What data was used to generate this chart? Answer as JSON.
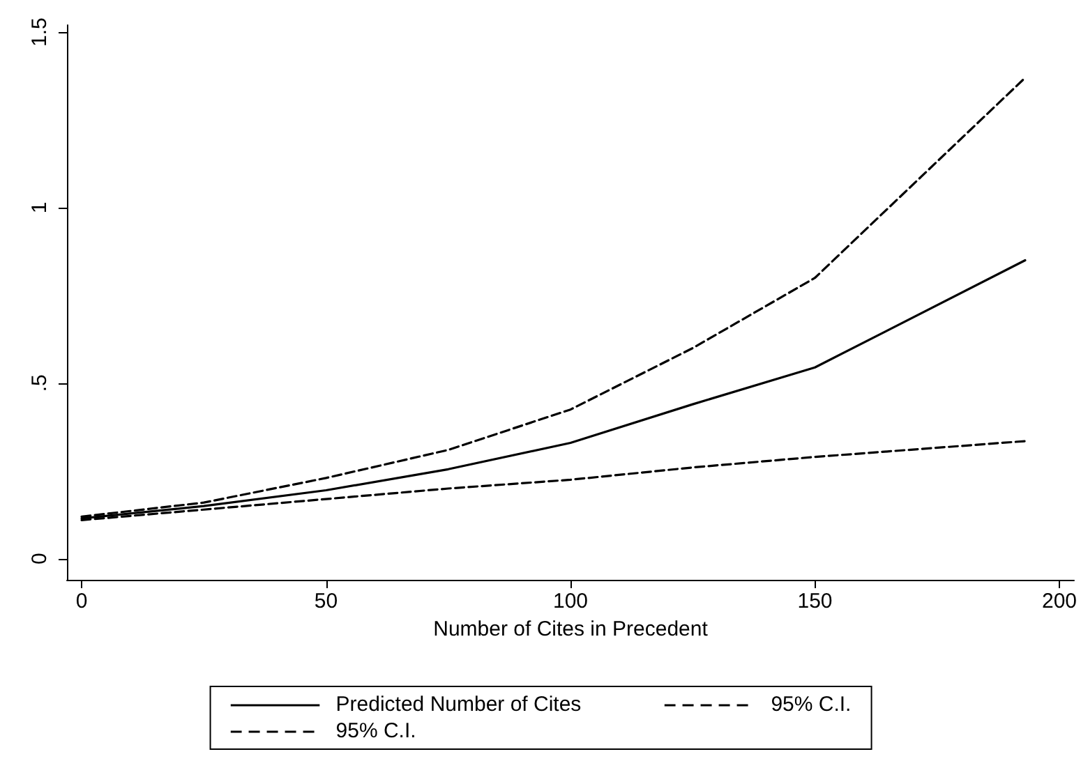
{
  "chart_data": {
    "type": "line",
    "xlabel": "Number of Cites in Precedent",
    "xlim": [
      -3,
      203
    ],
    "xticks": [
      0,
      50,
      100,
      150,
      200
    ],
    "ylim": [
      -0.06,
      1.52
    ],
    "yticks": [
      0,
      {
        "value": 0.5,
        "label": ".5"
      },
      1,
      1.5
    ],
    "grid": false,
    "legend": "bottom",
    "marker": "none",
    "series": [
      {
        "name": "Predicted Number of Cites",
        "color": "#000000",
        "line_style": "solid",
        "x": [
          0,
          25,
          50,
          75,
          100,
          125,
          150,
          193
        ],
        "values": [
          0.115,
          0.15,
          0.195,
          0.255,
          0.33,
          0.44,
          0.545,
          0.85
        ]
      },
      {
        "name": "95% C.I.",
        "color": "#000000",
        "line_style": "dashed",
        "x": [
          0,
          25,
          50,
          75,
          100,
          125,
          150,
          193
        ],
        "values": [
          0.12,
          0.16,
          0.23,
          0.31,
          0.425,
          0.6,
          0.8,
          1.37
        ]
      },
      {
        "name": "95% C.I.",
        "color": "#000000",
        "line_style": "dashed",
        "x": [
          0,
          25,
          50,
          75,
          100,
          125,
          150,
          193
        ],
        "values": [
          0.11,
          0.14,
          0.17,
          0.2,
          0.225,
          0.26,
          0.29,
          0.335
        ]
      }
    ]
  }
}
